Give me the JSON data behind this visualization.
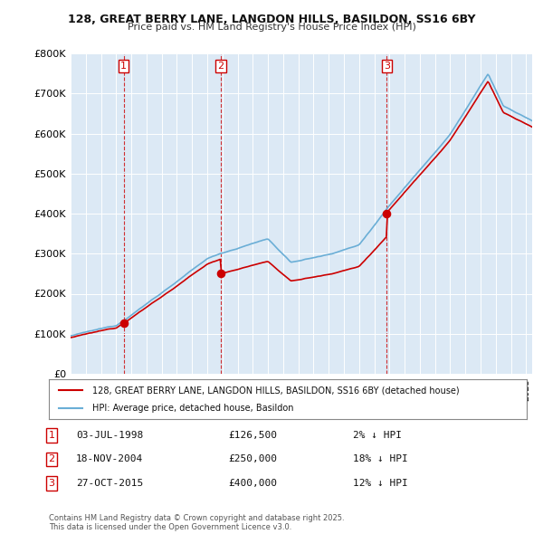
{
  "title1": "128, GREAT BERRY LANE, LANGDON HILLS, BASILDON, SS16 6BY",
  "title2": "Price paid vs. HM Land Registry's House Price Index (HPI)",
  "legend_property": "128, GREAT BERRY LANE, LANGDON HILLS, BASILDON, SS16 6BY (detached house)",
  "legend_hpi": "HPI: Average price, detached house, Basildon",
  "sale1": {
    "date": "03-JUL-1998",
    "price": 126500,
    "label": "1",
    "pct": "2%",
    "dir": "↓"
  },
  "sale2": {
    "date": "18-NOV-2004",
    "price": 250000,
    "label": "2",
    "pct": "18%",
    "dir": "↓"
  },
  "sale3": {
    "date": "27-OCT-2015",
    "price": 400000,
    "label": "3",
    "pct": "12%",
    "dir": "↓"
  },
  "property_color": "#cc0000",
  "hpi_color": "#6aaed6",
  "dot_color": "#cc0000",
  "background_color": "#ffffff",
  "plot_bg_color": "#dce9f5",
  "grid_color": "#ffffff",
  "vline_color": "#cc0000",
  "footnote": "Contains HM Land Registry data © Crown copyright and database right 2025.\nThis data is licensed under the Open Government Licence v3.0.",
  "ylim": [
    0,
    800000
  ],
  "yticks": [
    0,
    100000,
    200000,
    300000,
    400000,
    500000,
    600000,
    700000,
    800000
  ],
  "ytick_labels": [
    "£0",
    "£100K",
    "£200K",
    "£300K",
    "£400K",
    "£500K",
    "£600K",
    "£700K",
    "£800K"
  ],
  "sale_times": [
    1998.5,
    2004.88,
    2015.82
  ],
  "sale_prices": [
    126500,
    250000,
    400000
  ]
}
